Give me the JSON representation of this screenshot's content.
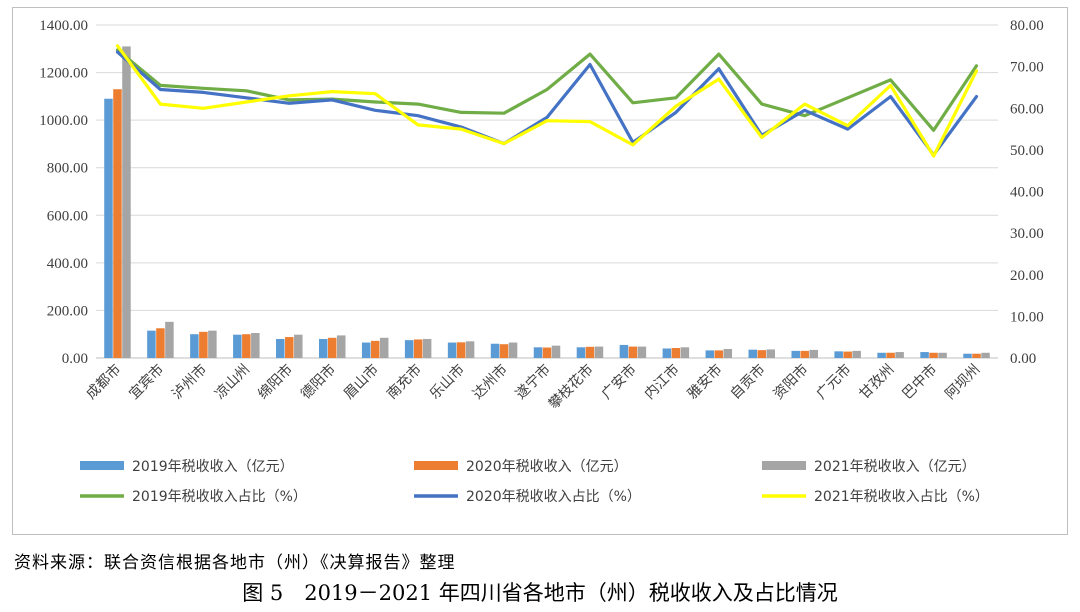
{
  "source_note": "资料来源：联合资信根据各地市（州）《决算报告》整理",
  "caption": "图 5　2019－2021 年四川省各地市（州）税收收入及占比情况",
  "colors": {
    "bar2019": "#5b9bd5",
    "bar2020": "#ed7d31",
    "bar2021": "#a5a5a5",
    "line2019": "#70ad47",
    "line2020": "#4472c4",
    "line2021": "#ffff00",
    "grid": "#d9d9d9"
  },
  "chart_data": {
    "type": "bar",
    "categories": [
      "成都市",
      "宜宾市",
      "泸州市",
      "凉山州",
      "绵阳市",
      "德阳市",
      "眉山市",
      "南充市",
      "乐山市",
      "达州市",
      "遂宁市",
      "攀枝花市",
      "广安市",
      "内江市",
      "雅安市",
      "自贡市",
      "资阳市",
      "广元市",
      "甘孜州",
      "巴中市",
      "阿坝州"
    ],
    "left_axis": {
      "min": 0,
      "max": 1400,
      "ticks": [
        "0.00",
        "200.00",
        "400.00",
        "600.00",
        "800.00",
        "1000.00",
        "1200.00",
        "1400.00"
      ]
    },
    "right_axis": {
      "min": 0,
      "max": 80,
      "ticks": [
        "0.00",
        "10.00",
        "20.00",
        "30.00",
        "40.00",
        "50.00",
        "60.00",
        "70.00",
        "80.00"
      ]
    },
    "grid": true,
    "legend_position": "bottom",
    "bar_series": [
      {
        "name": "2019年税收收入（亿元）",
        "values": [
          1090,
          115,
          100,
          98,
          80,
          80,
          65,
          75,
          65,
          60,
          45,
          45,
          55,
          40,
          32,
          35,
          30,
          28,
          22,
          25,
          18
        ]
      },
      {
        "name": "2020年税收收入（亿元）",
        "values": [
          1130,
          125,
          110,
          100,
          88,
          85,
          72,
          78,
          66,
          58,
          44,
          47,
          48,
          42,
          32,
          33,
          30,
          27,
          22,
          22,
          18
        ]
      },
      {
        "name": "2021年税收收入（亿元）",
        "values": [
          1310,
          152,
          115,
          105,
          98,
          95,
          85,
          80,
          70,
          65,
          52,
          48,
          48,
          45,
          38,
          36,
          34,
          30,
          25,
          22,
          22
        ]
      }
    ],
    "line_series": [
      {
        "name": "2019年税收收入占比（%）",
        "values": [
          74,
          65.5,
          64.8,
          64.2,
          62,
          62.2,
          61.5,
          61,
          59,
          58.8,
          64.5,
          73,
          61.3,
          62.5,
          73,
          61,
          58.2,
          62.5,
          66.8,
          54.7,
          70.2
        ]
      },
      {
        "name": "2020年税收收入占比（%）",
        "values": [
          73.5,
          64.5,
          63.8,
          62.5,
          61.2,
          62,
          59.5,
          58.2,
          55.5,
          51.5,
          57.8,
          70.5,
          51.8,
          59,
          69.5,
          53.5,
          59.5,
          55,
          62.8,
          48.8,
          62.8
        ]
      },
      {
        "name": "2021年税收收入占比（%）",
        "values": [
          75,
          61,
          60,
          61.5,
          63,
          64,
          63.5,
          56,
          55,
          51.5,
          57,
          56.8,
          51.2,
          60.5,
          67,
          53,
          61,
          55.8,
          65.5,
          48.5,
          69
        ]
      }
    ]
  }
}
